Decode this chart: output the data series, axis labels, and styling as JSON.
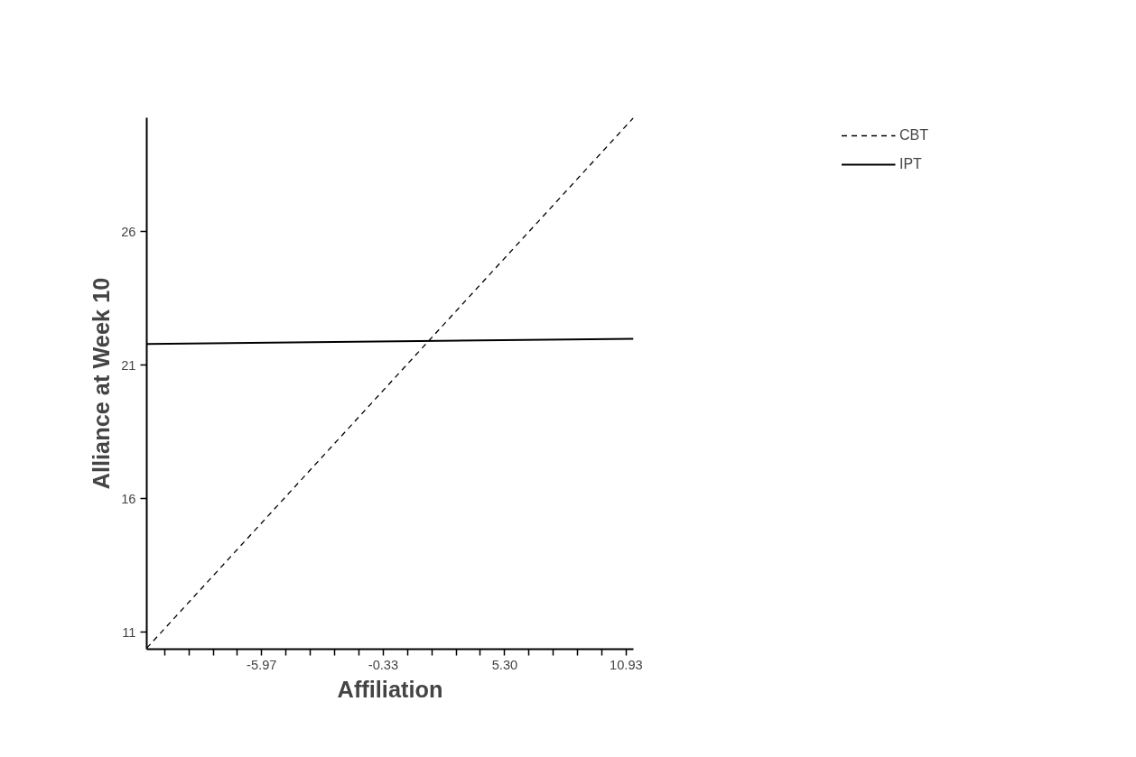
{
  "chart_data": {
    "type": "line",
    "xlabel": "Affiliation",
    "ylabel": "Alliance at Week 10",
    "x": [
      -11.3,
      11.27
    ],
    "series": [
      {
        "name": "CBT",
        "color": "#000000",
        "line_style": "dashed",
        "values": [
          10.4,
          30.26
        ]
      },
      {
        "name": "IPT",
        "color": "#000000",
        "line_style": "solid",
        "values": [
          21.79,
          21.98
        ]
      }
    ],
    "xlim": [
      -11.3,
      11.27
    ],
    "ylim": [
      10.36,
      30.26
    ],
    "xticks": [
      {
        "value": -10.47,
        "label": null
      },
      {
        "value": -9.35,
        "label": null
      },
      {
        "value": -8.22,
        "label": null
      },
      {
        "value": -7.1,
        "label": null
      },
      -5.97,
      {
        "value": -4.84,
        "label": null
      },
      {
        "value": -3.72,
        "label": null
      },
      {
        "value": -2.59,
        "label": null
      },
      {
        "value": -1.46,
        "label": null
      },
      -0.33,
      {
        "value": 0.8,
        "label": null
      },
      {
        "value": 1.92,
        "label": null
      },
      {
        "value": 3.05,
        "label": null
      },
      {
        "value": 4.17,
        "label": null
      },
      {
        "value": 5.3,
        "label": "5.30"
      },
      {
        "value": 6.43,
        "label": null
      },
      {
        "value": 7.55,
        "label": null
      },
      {
        "value": 8.68,
        "label": null
      },
      {
        "value": 9.8,
        "label": null
      },
      10.93
    ],
    "yticks": [
      11,
      16,
      21,
      26
    ],
    "grid": false,
    "legend": "top right",
    "marker": "none"
  }
}
